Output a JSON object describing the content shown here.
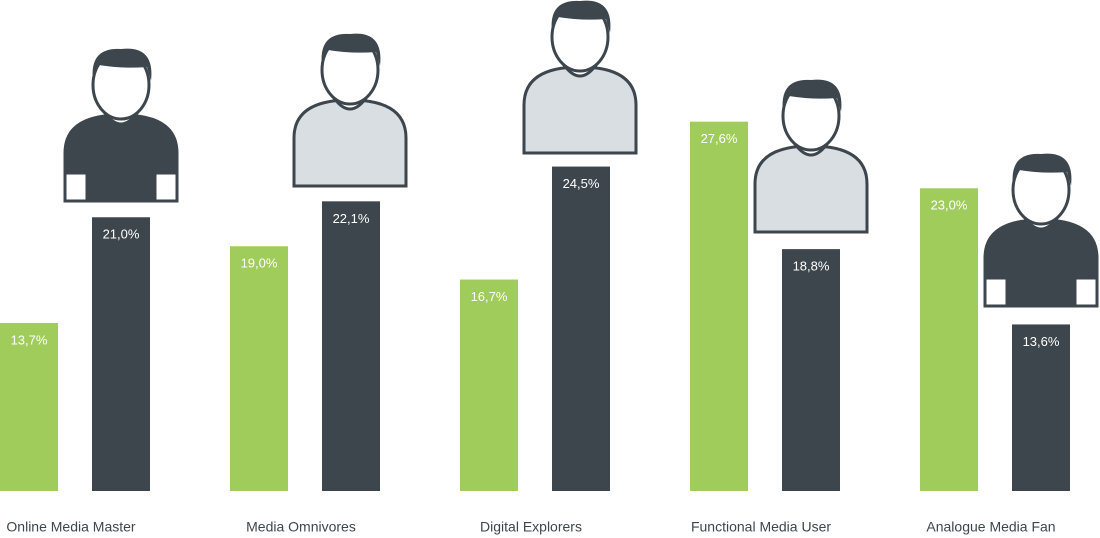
{
  "chart_data": {
    "type": "bar",
    "categories": [
      "Online Media Master",
      "Media Omnivores",
      "Digital Explorers",
      "Functional Media User",
      "Analogue Media Fan"
    ],
    "series": [
      {
        "color": "#a0cc5c",
        "values": [
          13.7,
          19.0,
          16.7,
          27.6,
          23.0
        ],
        "value_labels": [
          "13,7%",
          "19,0%",
          "16,7%",
          "27,6%",
          "23,0%"
        ]
      },
      {
        "color": "#3d464c",
        "values": [
          21.0,
          22.1,
          24.5,
          18.8,
          13.6
        ],
        "value_labels": [
          "21,0%",
          "22,1%",
          "24,5%",
          "18,8%",
          "13,6%"
        ]
      }
    ],
    "ylim": [
      2.1,
      36
    ]
  }
}
